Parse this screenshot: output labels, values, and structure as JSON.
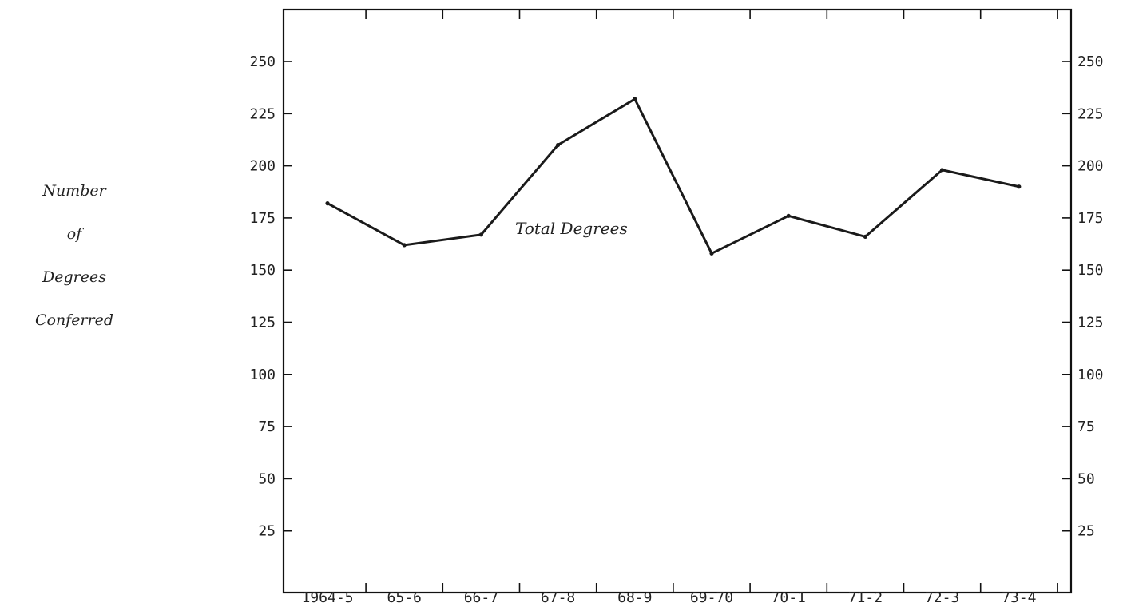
{
  "chart_data": {
    "type": "line",
    "title": "",
    "xlabel": "",
    "ylabel_lines": [
      "Number",
      "of",
      "Degrees",
      "Conferred"
    ],
    "categories": [
      "1964-5",
      "65-6",
      "66-7",
      "67-8",
      "68-9",
      "69-70",
      "70-1",
      "71-2",
      "72-3",
      "73-4"
    ],
    "series": [
      {
        "values": [
          182,
          162,
          167,
          210,
          232,
          158,
          176,
          166,
          198,
          190
        ]
      }
    ],
    "annotation": "Total Degrees",
    "y_ticks": [
      25,
      50,
      75,
      100,
      125,
      150,
      175,
      200,
      225,
      250
    ],
    "ylim": [
      0,
      275
    ],
    "grid": false,
    "legend": "none",
    "line_color": "#1a1a1a"
  }
}
